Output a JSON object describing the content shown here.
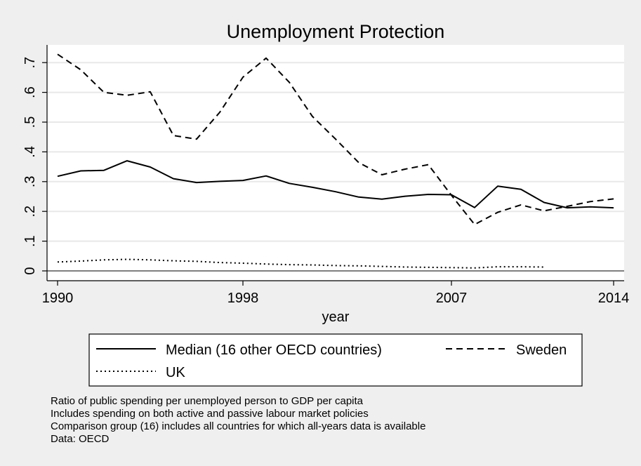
{
  "chart_data": {
    "type": "line",
    "title": "Unemployment Protection",
    "xlabel": "year",
    "ylabel": "",
    "xlim": [
      1990,
      2014
    ],
    "ylim": [
      0,
      0.75
    ],
    "x_ticks": [
      1990,
      1998,
      2007,
      2014
    ],
    "x_tick_labels": [
      "1990",
      "1998",
      "2007",
      "2014"
    ],
    "y_ticks": [
      0,
      0.1,
      0.2,
      0.3,
      0.4,
      0.5,
      0.6,
      0.7
    ],
    "y_tick_labels": [
      "0",
      ".1",
      ".2",
      ".3",
      ".4",
      ".5",
      ".6",
      ".7"
    ],
    "grid": true,
    "legend_position": "bottom",
    "series": [
      {
        "name": "Median (16 other OECD countries)",
        "style": "solid",
        "x": [
          1990,
          1991,
          1992,
          1993,
          1994,
          1995,
          1996,
          1997,
          1998,
          1999,
          2000,
          2001,
          2002,
          2003,
          2004,
          2005,
          2006,
          2007,
          2008,
          2009,
          2010,
          2011,
          2012,
          2013,
          2014
        ],
        "values": [
          0.318,
          0.336,
          0.338,
          0.37,
          0.349,
          0.31,
          0.297,
          0.301,
          0.304,
          0.319,
          0.294,
          0.281,
          0.266,
          0.248,
          0.241,
          0.251,
          0.257,
          0.256,
          0.213,
          0.285,
          0.274,
          0.23,
          0.212,
          0.215,
          0.212
        ]
      },
      {
        "name": "Sweden",
        "style": "dashed",
        "x": [
          1990,
          1991,
          1992,
          1993,
          1994,
          1995,
          1996,
          1997,
          1998,
          1999,
          2000,
          2001,
          2002,
          2003,
          2004,
          2005,
          2006,
          2007,
          2008,
          2009,
          2010,
          2011,
          2012,
          2013,
          2014
        ],
        "values": [
          0.728,
          0.676,
          0.6,
          0.59,
          0.602,
          0.455,
          0.443,
          0.533,
          0.651,
          0.715,
          0.634,
          0.519,
          0.443,
          0.364,
          0.323,
          0.342,
          0.357,
          0.254,
          0.156,
          0.197,
          0.222,
          0.202,
          0.217,
          0.233,
          0.242
        ]
      },
      {
        "name": "UK",
        "style": "dotted",
        "x": [
          1990,
          1991,
          1992,
          1993,
          1994,
          1995,
          1996,
          1997,
          1998,
          1999,
          2000,
          2001,
          2002,
          2003,
          2004,
          2005,
          2006,
          2007,
          2008,
          2009,
          2010,
          2011
        ],
        "values": [
          0.03,
          0.033,
          0.037,
          0.039,
          0.037,
          0.034,
          0.032,
          0.028,
          0.026,
          0.023,
          0.021,
          0.02,
          0.018,
          0.017,
          0.015,
          0.013,
          0.012,
          0.011,
          0.01,
          0.014,
          0.014,
          0.013
        ]
      }
    ],
    "notes": [
      "Ratio of public spending per unemployed person to GDP per capita",
      "Includes spending on both active and passive labour market policies",
      "Comparison group (16) includes all countries for which all-years data is available",
      "Data: OECD"
    ]
  }
}
